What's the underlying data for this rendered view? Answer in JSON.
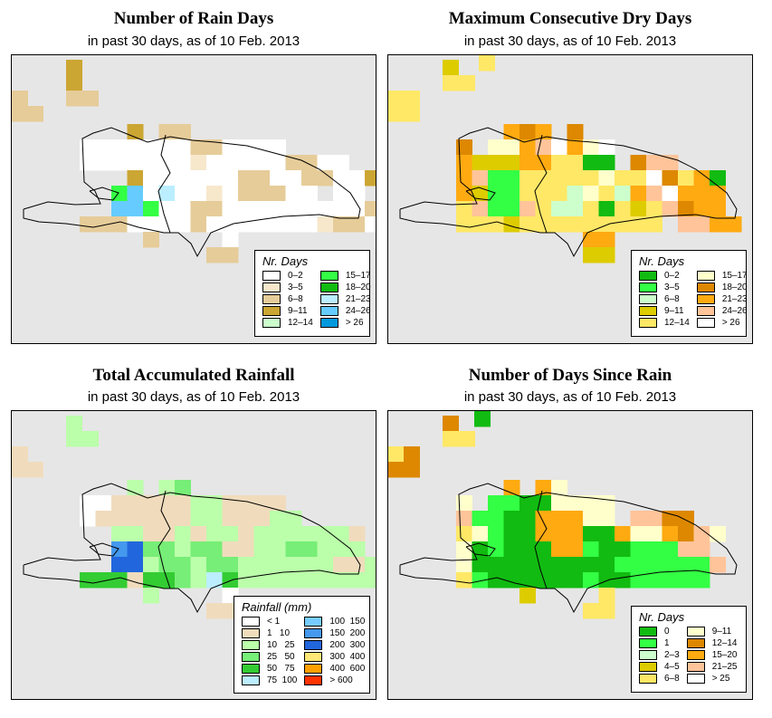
{
  "subtitle": "in past 30 days, as of  10 Feb. 2013",
  "panels": [
    {
      "title": "Number of Rain Days",
      "legend_title": "Nr. Days",
      "legend": [
        {
          "label": "0–2",
          "color": "#ffffff"
        },
        {
          "label": "3–5",
          "color": "#f7e8cc"
        },
        {
          "label": "6–8",
          "color": "#e6cc99"
        },
        {
          "label": "9–11",
          "color": "#cca633"
        },
        {
          "label": "12–14",
          "color": "#ccffcc"
        },
        {
          "label": "15–17",
          "color": "#33ff44"
        },
        {
          "label": "18–20",
          "color": "#11bb11"
        },
        {
          "label": "21–23",
          "color": "#bbeeff"
        },
        {
          "label": "24–26",
          "color": "#66ccff"
        },
        {
          "label": "> 26",
          "color": "#0099dd"
        }
      ]
    },
    {
      "title": "Maximum Consecutive Dry Days",
      "legend_title": "Nr. Days",
      "legend": [
        {
          "label": "0–2",
          "color": "#11bb11"
        },
        {
          "label": "3–5",
          "color": "#33ff44"
        },
        {
          "label": "6–8",
          "color": "#ccffcc"
        },
        {
          "label": "9–11",
          "color": "#ddcc00"
        },
        {
          "label": "12–14",
          "color": "#ffe866"
        },
        {
          "label": "15–17",
          "color": "#ffffcc"
        },
        {
          "label": "18–20",
          "color": "#dd8800"
        },
        {
          "label": "21–23",
          "color": "#ffaa11"
        },
        {
          "label": "24–26",
          "color": "#ffc499"
        },
        {
          "label": "> 26",
          "color": "#ffffff"
        }
      ]
    },
    {
      "title": "Total Accumulated Rainfall",
      "legend_title": "Rainfall (mm)",
      "legend": [
        {
          "label": "< 1",
          "color": "#ffffff"
        },
        {
          "label": "1   10",
          "color": "#f0dcbc"
        },
        {
          "label": "10   25",
          "color": "#bbffaa"
        },
        {
          "label": "25   50",
          "color": "#77ee77"
        },
        {
          "label": "50   75",
          "color": "#33cc33"
        },
        {
          "label": "75  100",
          "color": "#bbeeff"
        },
        {
          "label": "100  150",
          "color": "#77ccff"
        },
        {
          "label": "150  200",
          "color": "#4499ee"
        },
        {
          "label": "200  300",
          "color": "#2266dd"
        },
        {
          "label": "300  400",
          "color": "#ffe877"
        },
        {
          "label": "400  600",
          "color": "#ffa000"
        },
        {
          "label": "> 600",
          "color": "#ff3300"
        }
      ]
    },
    {
      "title": "Number of Days Since Rain",
      "legend_title": "Nr. Days",
      "legend": [
        {
          "label": "0",
          "color": "#11bb11"
        },
        {
          "label": "1",
          "color": "#33ff44"
        },
        {
          "label": "2–3",
          "color": "#ccffcc"
        },
        {
          "label": "4–5",
          "color": "#ddcc00"
        },
        {
          "label": "6–8",
          "color": "#ffe866"
        },
        {
          "label": "9–11",
          "color": "#ffffcc"
        },
        {
          "label": "12–14",
          "color": "#dd8800"
        },
        {
          "label": "15–20",
          "color": "#ffaa11"
        },
        {
          "label": "21–25",
          "color": "#ffc499"
        },
        {
          "label": "> 25",
          "color": "#ffffff"
        }
      ]
    }
  ]
}
